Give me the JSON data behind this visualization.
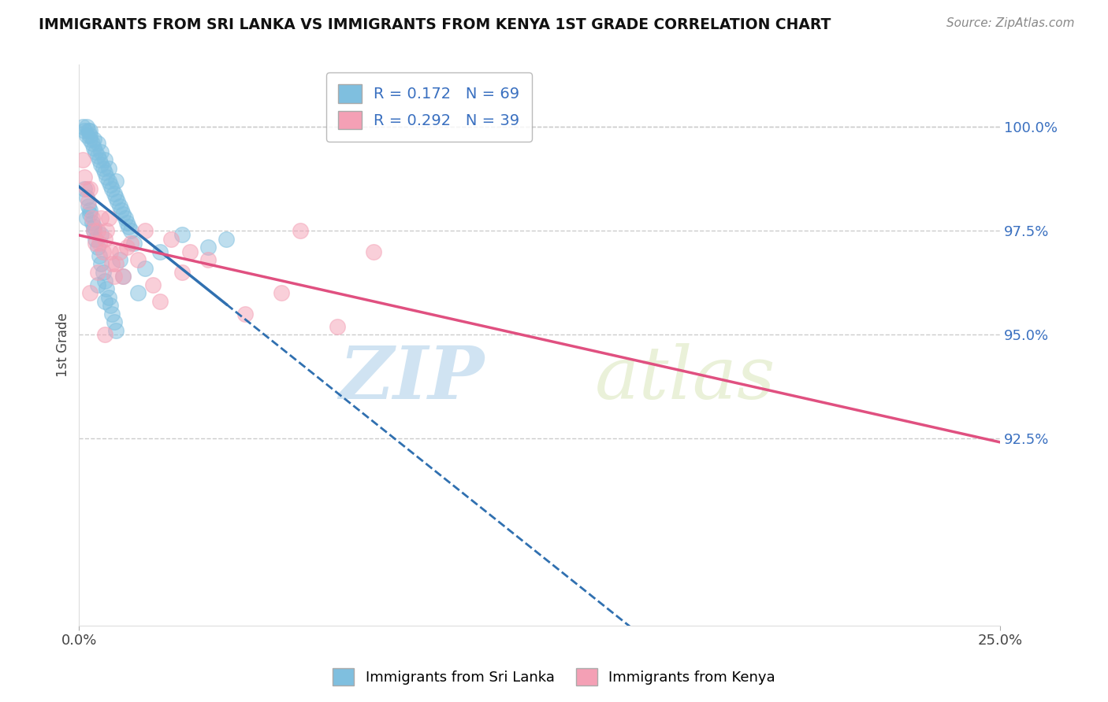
{
  "title": "IMMIGRANTS FROM SRI LANKA VS IMMIGRANTS FROM KENYA 1ST GRADE CORRELATION CHART",
  "source": "Source: ZipAtlas.com",
  "xlabel_legend1": "Immigrants from Sri Lanka",
  "xlabel_legend2": "Immigrants from Kenya",
  "ylabel": "1st Grade",
  "xlim": [
    0.0,
    25.0
  ],
  "ylim": [
    88.0,
    101.5
  ],
  "yticks": [
    92.5,
    95.0,
    97.5,
    100.0
  ],
  "xticks": [
    0.0,
    25.0
  ],
  "xticklabels": [
    "0.0%",
    "25.0%"
  ],
  "yticklabels": [
    "92.5%",
    "95.0%",
    "97.5%",
    "100.0%"
  ],
  "color_blue": "#7fbfdf",
  "color_pink": "#f4a0b5",
  "color_blue_line": "#3070b0",
  "color_pink_line": "#e05080",
  "R_blue": 0.172,
  "N_blue": 69,
  "R_pink": 0.292,
  "N_pink": 39,
  "blue_solid_end": 4.0,
  "blue_trend": [
    98.2,
    0.12
  ],
  "pink_trend": [
    96.5,
    0.145
  ],
  "blue_scatter_x": [
    0.1,
    0.15,
    0.2,
    0.2,
    0.25,
    0.3,
    0.3,
    0.3,
    0.35,
    0.4,
    0.4,
    0.45,
    0.5,
    0.5,
    0.55,
    0.6,
    0.6,
    0.65,
    0.7,
    0.7,
    0.75,
    0.8,
    0.8,
    0.85,
    0.9,
    0.95,
    1.0,
    1.0,
    1.05,
    1.1,
    1.15,
    1.2,
    1.25,
    1.3,
    1.35,
    1.4,
    0.15,
    0.2,
    0.25,
    0.3,
    0.35,
    0.4,
    0.45,
    0.5,
    0.55,
    0.6,
    0.65,
    0.7,
    0.75,
    0.8,
    0.85,
    0.9,
    0.95,
    1.0,
    1.1,
    1.2,
    1.5,
    1.8,
    2.2,
    2.8,
    3.5,
    4.0,
    1.6,
    0.5,
    0.7,
    0.3,
    0.2,
    0.4,
    0.6
  ],
  "blue_scatter_y": [
    100.0,
    99.9,
    100.0,
    99.8,
    99.9,
    99.8,
    99.7,
    99.9,
    99.6,
    99.5,
    99.7,
    99.4,
    99.3,
    99.6,
    99.2,
    99.1,
    99.4,
    99.0,
    98.9,
    99.2,
    98.8,
    98.7,
    99.0,
    98.6,
    98.5,
    98.4,
    98.3,
    98.7,
    98.2,
    98.1,
    98.0,
    97.9,
    97.8,
    97.7,
    97.6,
    97.5,
    98.5,
    98.3,
    98.1,
    97.9,
    97.7,
    97.5,
    97.3,
    97.1,
    96.9,
    96.7,
    96.5,
    96.3,
    96.1,
    95.9,
    95.7,
    95.5,
    95.3,
    95.1,
    96.8,
    96.4,
    97.2,
    96.6,
    97.0,
    97.4,
    97.1,
    97.3,
    96.0,
    96.2,
    95.8,
    98.0,
    97.8,
    97.6,
    97.4
  ],
  "pink_scatter_x": [
    0.1,
    0.15,
    0.2,
    0.25,
    0.3,
    0.35,
    0.4,
    0.45,
    0.5,
    0.55,
    0.6,
    0.65,
    0.7,
    0.75,
    0.8,
    0.85,
    0.9,
    0.95,
    1.0,
    1.1,
    1.2,
    1.4,
    1.6,
    1.8,
    2.0,
    2.2,
    2.5,
    3.0,
    3.5,
    4.5,
    5.5,
    7.0,
    0.3,
    0.5,
    0.7,
    1.3,
    2.8,
    6.0,
    8.0
  ],
  "pink_scatter_y": [
    99.2,
    98.8,
    98.5,
    98.2,
    98.5,
    97.8,
    97.5,
    97.2,
    97.5,
    97.2,
    97.8,
    97.0,
    97.3,
    97.5,
    97.8,
    97.0,
    96.7,
    96.4,
    96.7,
    97.0,
    96.4,
    97.2,
    96.8,
    97.5,
    96.2,
    95.8,
    97.3,
    97.0,
    96.8,
    95.5,
    96.0,
    95.2,
    96.0,
    96.5,
    95.0,
    97.1,
    96.5,
    97.5,
    97.0
  ],
  "watermark_zip": "ZIP",
  "watermark_atlas": "atlas",
  "grid_color": "#cccccc",
  "background_color": "#ffffff"
}
